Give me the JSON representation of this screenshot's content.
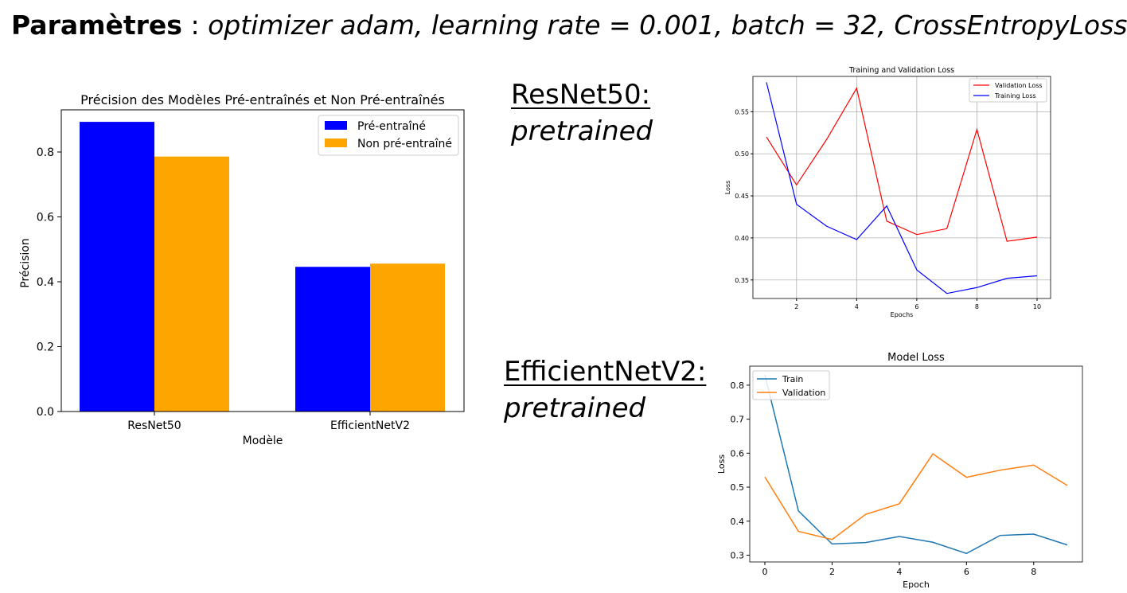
{
  "header": {
    "label": "Paramètres",
    "separator": " : ",
    "params": "optimizer adam, learning rate = 0.001, batch = 32, CrossEntropyLoss"
  },
  "labels": {
    "resnet": {
      "name": "ResNet50:",
      "status": "pretrained"
    },
    "efficientnet": {
      "name": "EfficientNetV2:",
      "status": "pretrained"
    }
  },
  "chart_data": [
    {
      "type": "bar",
      "title": "Précision des Modèles Pré-entraînés et Non Pré-entraînés",
      "xlabel": "Modèle",
      "ylabel": "Précision",
      "categories": [
        "ResNet50",
        "EfficientNetV2"
      ],
      "series": [
        {
          "name": "Pré-entraîné",
          "color": "#0000ff",
          "values": [
            0.893,
            0.446
          ]
        },
        {
          "name": "Non pré-entraîné",
          "color": "#ffa500",
          "values": [
            0.786,
            0.456
          ]
        }
      ],
      "ylim": [
        0,
        0.93
      ],
      "yticks": [
        "0.0",
        "0.2",
        "0.4",
        "0.6",
        "0.8"
      ],
      "legend": "top-right",
      "grid": false
    },
    {
      "type": "line",
      "title": "Training and Validation Loss",
      "xlabel": "Epochs",
      "ylabel": "Loss",
      "x": [
        1,
        2,
        3,
        4,
        5,
        6,
        7,
        8,
        9,
        10
      ],
      "series": [
        {
          "name": "Validation Loss",
          "color": "#ff0000",
          "values": [
            0.52,
            0.463,
            0.517,
            0.578,
            0.42,
            0.404,
            0.411,
            0.529,
            0.396,
            0.401
          ]
        },
        {
          "name": "Training Loss",
          "color": "#0000ff",
          "values": [
            0.585,
            0.44,
            0.414,
            0.398,
            0.438,
            0.362,
            0.334,
            0.341,
            0.352,
            0.355
          ]
        }
      ],
      "xlim": [
        0.55,
        10.45
      ],
      "ylim": [
        0.328,
        0.592
      ],
      "xticks": [
        "2",
        "4",
        "6",
        "8",
        "10"
      ],
      "yticks": [
        "0.35",
        "0.40",
        "0.45",
        "0.50",
        "0.55"
      ],
      "legend": "top-right",
      "grid": true
    },
    {
      "type": "line",
      "title": "Model Loss",
      "xlabel": "Epoch",
      "ylabel": "Loss",
      "x": [
        0,
        1,
        2,
        3,
        4,
        5,
        6,
        7,
        8,
        9
      ],
      "series": [
        {
          "name": "Train",
          "color": "#1f77b4",
          "values": [
            0.83,
            0.43,
            0.333,
            0.337,
            0.355,
            0.338,
            0.305,
            0.358,
            0.362,
            0.33
          ]
        },
        {
          "name": "Validation",
          "color": "#ff7f0e",
          "values": [
            0.53,
            0.37,
            0.346,
            0.42,
            0.451,
            0.598,
            0.529,
            0.55,
            0.565,
            0.505
          ]
        }
      ],
      "xlim": [
        -0.45,
        9.45
      ],
      "ylim": [
        0.28,
        0.856
      ],
      "xticks": [
        "0",
        "2",
        "4",
        "6",
        "8"
      ],
      "yticks": [
        "0.3",
        "0.4",
        "0.5",
        "0.6",
        "0.7",
        "0.8"
      ],
      "legend": "top-left",
      "grid": false
    }
  ]
}
